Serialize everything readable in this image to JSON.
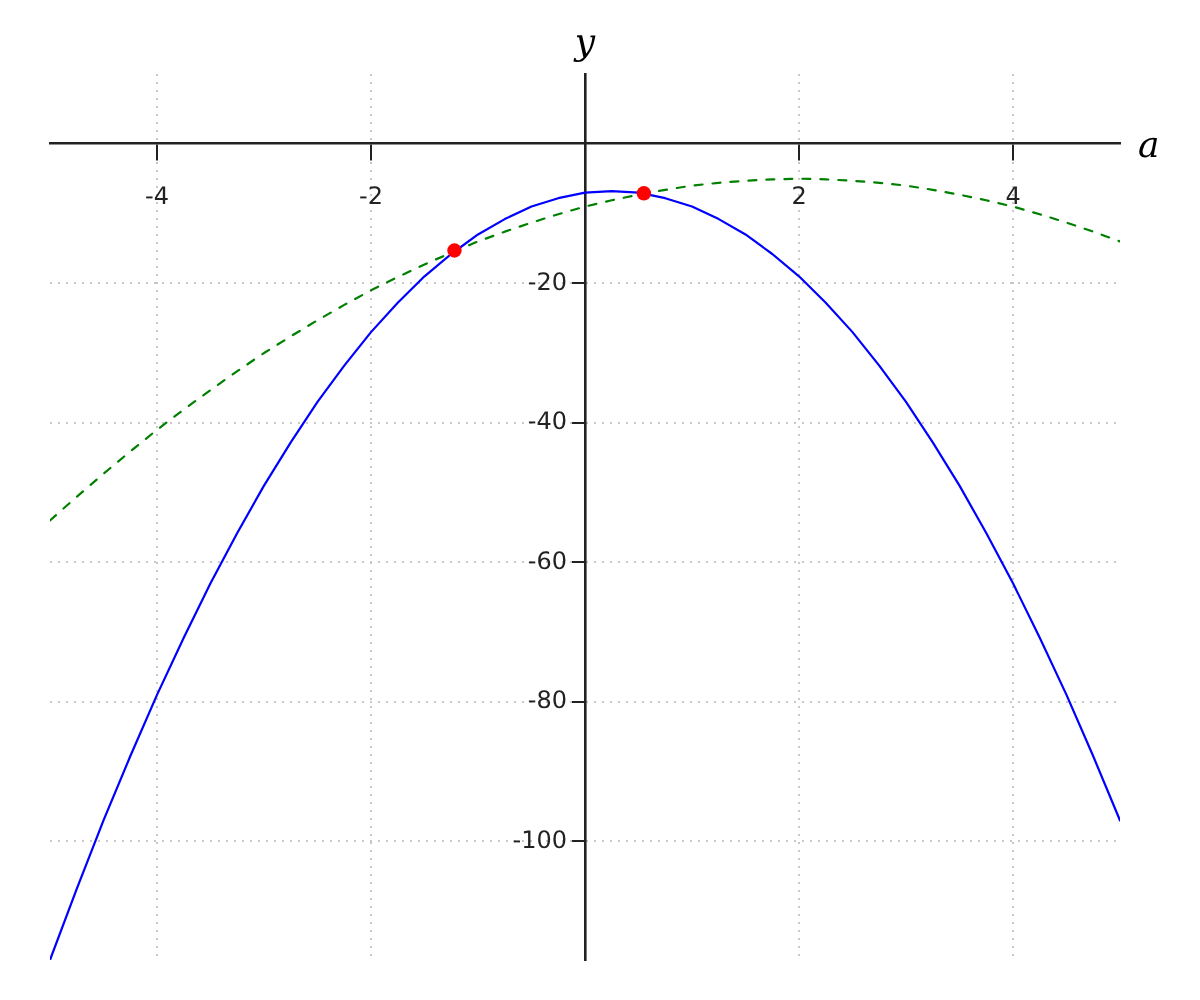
{
  "chart_data": {
    "type": "line",
    "xlabel": "a",
    "ylabel": "y",
    "x": [
      -5,
      -4.75,
      -4.5,
      -4.25,
      -4,
      -3.75,
      -3.5,
      -3.25,
      -3,
      -2.75,
      -2.5,
      -2.25,
      -2,
      -1.75,
      -1.5,
      -1.25,
      -1,
      -0.75,
      -0.5,
      -0.25,
      0,
      0.25,
      0.5,
      0.75,
      1,
      1.25,
      1.5,
      1.75,
      2,
      2.25,
      2.5,
      2.75,
      3,
      3.25,
      3.5,
      3.75,
      4,
      4.25,
      4.5,
      4.75,
      5
    ],
    "series": [
      {
        "color": "#0000ff",
        "line_style": "solid",
        "values": [
          -117,
          -106.8,
          -97,
          -87.8,
          -79,
          -70.8,
          -63,
          -55.8,
          -49,
          -42.8,
          -37,
          -31.8,
          -27,
          -22.8,
          -19,
          -15.8,
          -13,
          -10.8,
          -9,
          -7.8,
          -7,
          -6.8,
          -7,
          -7.8,
          -9,
          -10.8,
          -13,
          -15.8,
          -19,
          -22.8,
          -27,
          -31.8,
          -37,
          -42.8,
          -49,
          -55.8,
          -63,
          -70.8,
          -79,
          -87.8,
          -97
        ]
      },
      {
        "color": "#008000",
        "line_style": "dashed",
        "values": [
          -54,
          -50.6,
          -47.3,
          -44.1,
          -41,
          -38.1,
          -35.3,
          -32.6,
          -30,
          -27.6,
          -25.3,
          -23.1,
          -21,
          -19.1,
          -17.3,
          -15.6,
          -14,
          -12.6,
          -11.3,
          -10.1,
          -9,
          -8.1,
          -7.3,
          -6.6,
          -6,
          -5.6,
          -5.3,
          -5.1,
          -5,
          -5.1,
          -5.3,
          -5.6,
          -6,
          -6.6,
          -7.3,
          -8.1,
          -9,
          -10.1,
          -11.3,
          -12.6,
          -14
        ]
      },
      {
        "type": "scatter",
        "color": "#ff0000",
        "marker": "circle",
        "x": [
          -1.22,
          0.55
        ],
        "values": [
          -15.3,
          -7.1
        ]
      }
    ],
    "xlim": [
      -5,
      5
    ],
    "ylim": [
      -117,
      10
    ],
    "xticks": [
      -4,
      -2,
      2,
      4
    ],
    "yticks": [
      -100,
      -80,
      -60,
      -40,
      -20
    ],
    "grid": true
  }
}
